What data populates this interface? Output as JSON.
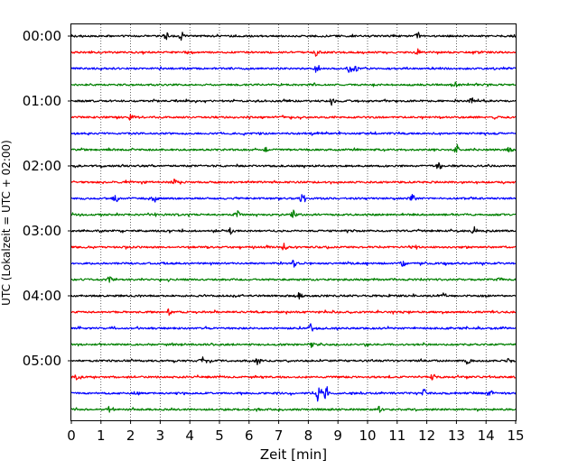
{
  "chart_data": {
    "type": "line",
    "title": "",
    "xlabel": "Zeit  [min]",
    "ylabel": "UTC (Lokalzeit = UTC + 02:00)",
    "xlim": [
      0,
      15
    ],
    "x_ticks": [
      0,
      1,
      2,
      3,
      4,
      5,
      6,
      7,
      8,
      9,
      10,
      11,
      12,
      13,
      14,
      15
    ],
    "y_tick_labels": [
      "00:00",
      "01:00",
      "02:00",
      "03:00",
      "04:00",
      "05:00"
    ],
    "grid": {
      "vertical": true,
      "style": "dotted"
    },
    "trace_interval_minutes": 15,
    "trace_count": 24,
    "colors": [
      "#000000",
      "#ff0000",
      "#0000ff",
      "#008000"
    ],
    "traces": [
      {
        "start": "00:00",
        "color": "#000000",
        "events": [
          [
            3.2,
            4.0
          ],
          [
            3.7,
            5.5
          ],
          [
            11.7,
            3.5
          ]
        ]
      },
      {
        "start": "00:15",
        "color": "#ff0000",
        "events": [
          [
            8.3,
            4.0
          ],
          [
            11.7,
            3.0
          ]
        ]
      },
      {
        "start": "00:30",
        "color": "#0000ff",
        "events": [
          [
            8.3,
            3.5
          ],
          [
            9.4,
            4.5
          ],
          [
            9.6,
            3.5
          ]
        ]
      },
      {
        "start": "00:45",
        "color": "#008000",
        "events": [
          [
            13.0,
            3.0
          ]
        ]
      },
      {
        "start": "01:00",
        "color": "#000000",
        "events": [
          [
            8.8,
            4.0
          ],
          [
            13.5,
            3.0
          ]
        ]
      },
      {
        "start": "01:15",
        "color": "#ff0000",
        "events": [
          [
            2.0,
            3.5
          ]
        ]
      },
      {
        "start": "01:30",
        "color": "#0000ff",
        "events": []
      },
      {
        "start": "01:45",
        "color": "#008000",
        "events": [
          [
            6.6,
            3.5
          ],
          [
            13.0,
            4.5
          ],
          [
            14.8,
            3.0
          ]
        ]
      },
      {
        "start": "02:00",
        "color": "#000000",
        "events": [
          [
            12.4,
            4.0
          ]
        ]
      },
      {
        "start": "02:15",
        "color": "#ff0000",
        "events": [
          [
            3.5,
            3.5
          ]
        ]
      },
      {
        "start": "02:30",
        "color": "#0000ff",
        "events": [
          [
            1.5,
            4.0
          ],
          [
            2.8,
            3.5
          ],
          [
            7.8,
            5.5
          ],
          [
            11.5,
            4.5
          ]
        ]
      },
      {
        "start": "02:45",
        "color": "#008000",
        "events": [
          [
            5.6,
            3.5
          ],
          [
            7.5,
            4.5
          ]
        ]
      },
      {
        "start": "03:00",
        "color": "#000000",
        "events": [
          [
            5.4,
            3.5
          ],
          [
            13.6,
            4.0
          ]
        ]
      },
      {
        "start": "03:15",
        "color": "#ff0000",
        "events": [
          [
            7.2,
            4.0
          ],
          [
            11.6,
            4.5
          ]
        ]
      },
      {
        "start": "03:30",
        "color": "#0000ff",
        "events": [
          [
            7.5,
            4.5
          ],
          [
            11.2,
            3.0
          ]
        ]
      },
      {
        "start": "03:45",
        "color": "#008000",
        "events": [
          [
            1.3,
            3.0
          ],
          [
            14.5,
            4.0
          ]
        ]
      },
      {
        "start": "04:00",
        "color": "#000000",
        "events": [
          [
            7.7,
            3.0
          ],
          [
            12.6,
            3.0
          ]
        ]
      },
      {
        "start": "04:15",
        "color": "#ff0000",
        "events": [
          [
            3.3,
            3.0
          ]
        ]
      },
      {
        "start": "04:30",
        "color": "#0000ff",
        "events": [
          [
            8.1,
            4.0
          ]
        ]
      },
      {
        "start": "04:45",
        "color": "#008000",
        "events": [
          [
            8.1,
            3.0
          ]
        ]
      },
      {
        "start": "05:00",
        "color": "#000000",
        "events": [
          [
            4.4,
            4.5
          ],
          [
            6.3,
            4.0
          ],
          [
            13.4,
            4.5
          ],
          [
            14.8,
            4.0
          ]
        ]
      },
      {
        "start": "05:15",
        "color": "#ff0000",
        "events": [
          [
            0.2,
            3.5
          ],
          [
            12.2,
            3.5
          ]
        ]
      },
      {
        "start": "05:30",
        "color": "#0000ff",
        "events": [
          [
            2.2,
            3.0
          ],
          [
            8.35,
            10.0
          ],
          [
            8.6,
            8.0
          ],
          [
            11.9,
            4.0
          ],
          [
            14.1,
            3.0
          ]
        ]
      },
      {
        "start": "05:45",
        "color": "#008000",
        "events": [
          [
            1.3,
            3.0
          ],
          [
            10.4,
            3.0
          ]
        ]
      }
    ]
  }
}
